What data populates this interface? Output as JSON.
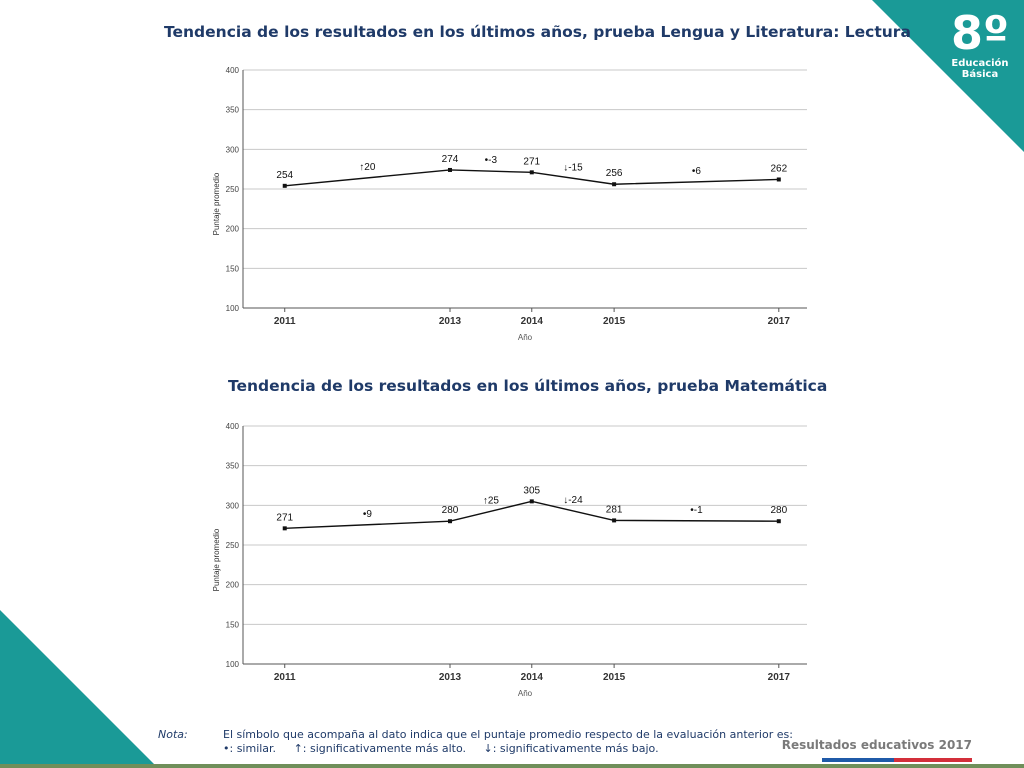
{
  "badge": {
    "grade": "8º",
    "line1": "Educación",
    "line2": "Básica"
  },
  "footer": {
    "brand": "Resultados educativos 2017"
  },
  "note": {
    "label": "Nota:",
    "line1": "El símbolo que acompaña al dato indica que el puntaje promedio respecto de la evaluación anterior es:",
    "items": [
      "•: similar.",
      "↑: significativamente más alto.",
      "↓: significativamente más bajo."
    ]
  },
  "colors": {
    "accent": "#1a9a97",
    "title": "#1f3a68",
    "flag_blue": "#1f5aa8",
    "flag_red": "#d32f3a"
  },
  "chart_data": [
    {
      "type": "line",
      "title": "Tendencia de los resultados en los últimos años, prueba Lengua y Literatura: Lectura",
      "xlabel": "Año",
      "ylabel": "Puntaje promedio",
      "ylim": [
        100,
        400
      ],
      "yticks": [
        100,
        150,
        200,
        250,
        300,
        350,
        400
      ],
      "grid": true,
      "x": [
        "2011",
        "2013",
        "2014",
        "2015",
        "2017"
      ],
      "values": [
        254,
        274,
        271,
        256,
        262
      ],
      "changes": [
        {
          "from": "2011",
          "to": "2013",
          "symbol": "↑",
          "label": "20"
        },
        {
          "from": "2013",
          "to": "2014",
          "symbol": "•",
          "label": "-3"
        },
        {
          "from": "2014",
          "to": "2015",
          "symbol": "↓",
          "label": "-15"
        },
        {
          "from": "2015",
          "to": "2017",
          "symbol": "•",
          "label": "6"
        }
      ]
    },
    {
      "type": "line",
      "title": "Tendencia de los resultados en los últimos años, prueba Matemática",
      "xlabel": "Año",
      "ylabel": "Puntaje promedio",
      "ylim": [
        100,
        400
      ],
      "yticks": [
        100,
        150,
        200,
        250,
        300,
        350,
        400
      ],
      "grid": true,
      "x": [
        "2011",
        "2013",
        "2014",
        "2015",
        "2017"
      ],
      "values": [
        271,
        280,
        305,
        281,
        280
      ],
      "changes": [
        {
          "from": "2011",
          "to": "2013",
          "symbol": "•",
          "label": "9"
        },
        {
          "from": "2013",
          "to": "2014",
          "symbol": "↑",
          "label": "25"
        },
        {
          "from": "2014",
          "to": "2015",
          "symbol": "↓",
          "label": "-24"
        },
        {
          "from": "2015",
          "to": "2017",
          "symbol": "•",
          "label": "-1"
        }
      ]
    }
  ]
}
